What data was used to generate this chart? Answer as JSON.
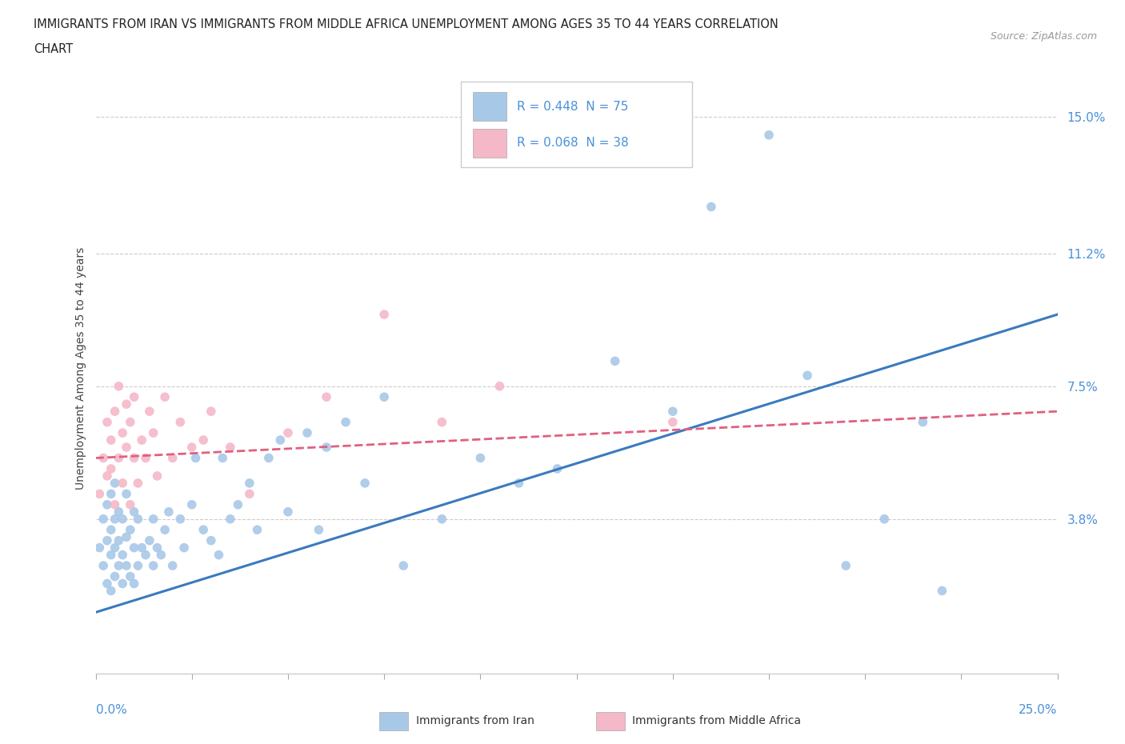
{
  "title_line1": "IMMIGRANTS FROM IRAN VS IMMIGRANTS FROM MIDDLE AFRICA UNEMPLOYMENT AMONG AGES 35 TO 44 YEARS CORRELATION",
  "title_line2": "CHART",
  "source_text": "Source: ZipAtlas.com",
  "ylabel": "Unemployment Among Ages 35 to 44 years",
  "ytick_values": [
    0.038,
    0.075,
    0.112,
    0.15
  ],
  "ytick_labels": [
    "3.8%",
    "7.5%",
    "11.2%",
    "15.0%"
  ],
  "xmin": 0.0,
  "xmax": 0.25,
  "ymin": -0.005,
  "ymax": 0.165,
  "iran_color": "#a8c8e8",
  "iran_line_color": "#3a7abf",
  "africa_color": "#f4b8c8",
  "africa_line_color": "#e06080",
  "iran_R": 0.448,
  "iran_N": 75,
  "africa_R": 0.068,
  "africa_N": 38,
  "iran_trend_x0": 0.0,
  "iran_trend_y0": 0.012,
  "iran_trend_x1": 0.25,
  "iran_trend_y1": 0.095,
  "africa_trend_x0": 0.0,
  "africa_trend_y0": 0.055,
  "africa_trend_x1": 0.25,
  "africa_trend_y1": 0.068,
  "iran_scatter_x": [
    0.001,
    0.002,
    0.002,
    0.003,
    0.003,
    0.003,
    0.004,
    0.004,
    0.004,
    0.004,
    0.005,
    0.005,
    0.005,
    0.005,
    0.006,
    0.006,
    0.006,
    0.007,
    0.007,
    0.007,
    0.008,
    0.008,
    0.008,
    0.009,
    0.009,
    0.01,
    0.01,
    0.01,
    0.011,
    0.011,
    0.012,
    0.013,
    0.014,
    0.015,
    0.015,
    0.016,
    0.017,
    0.018,
    0.019,
    0.02,
    0.022,
    0.023,
    0.025,
    0.026,
    0.028,
    0.03,
    0.032,
    0.033,
    0.035,
    0.037,
    0.04,
    0.042,
    0.045,
    0.048,
    0.05,
    0.055,
    0.058,
    0.06,
    0.065,
    0.07,
    0.075,
    0.08,
    0.09,
    0.1,
    0.11,
    0.12,
    0.135,
    0.15,
    0.16,
    0.175,
    0.185,
    0.195,
    0.205,
    0.215,
    0.22
  ],
  "iran_scatter_y": [
    0.03,
    0.025,
    0.038,
    0.02,
    0.032,
    0.042,
    0.018,
    0.028,
    0.035,
    0.045,
    0.022,
    0.03,
    0.038,
    0.048,
    0.025,
    0.032,
    0.04,
    0.02,
    0.028,
    0.038,
    0.025,
    0.033,
    0.045,
    0.022,
    0.035,
    0.02,
    0.03,
    0.04,
    0.025,
    0.038,
    0.03,
    0.028,
    0.032,
    0.025,
    0.038,
    0.03,
    0.028,
    0.035,
    0.04,
    0.025,
    0.038,
    0.03,
    0.042,
    0.055,
    0.035,
    0.032,
    0.028,
    0.055,
    0.038,
    0.042,
    0.048,
    0.035,
    0.055,
    0.06,
    0.04,
    0.062,
    0.035,
    0.058,
    0.065,
    0.048,
    0.072,
    0.025,
    0.038,
    0.055,
    0.048,
    0.052,
    0.082,
    0.068,
    0.125,
    0.145,
    0.078,
    0.025,
    0.038,
    0.065,
    0.018
  ],
  "africa_scatter_x": [
    0.001,
    0.002,
    0.003,
    0.003,
    0.004,
    0.004,
    0.005,
    0.005,
    0.006,
    0.006,
    0.007,
    0.007,
    0.008,
    0.008,
    0.009,
    0.009,
    0.01,
    0.01,
    0.011,
    0.012,
    0.013,
    0.014,
    0.015,
    0.016,
    0.018,
    0.02,
    0.022,
    0.025,
    0.028,
    0.03,
    0.035,
    0.04,
    0.05,
    0.06,
    0.075,
    0.09,
    0.105,
    0.15
  ],
  "africa_scatter_y": [
    0.045,
    0.055,
    0.05,
    0.065,
    0.052,
    0.06,
    0.042,
    0.068,
    0.055,
    0.075,
    0.048,
    0.062,
    0.058,
    0.07,
    0.042,
    0.065,
    0.055,
    0.072,
    0.048,
    0.06,
    0.055,
    0.068,
    0.062,
    0.05,
    0.072,
    0.055,
    0.065,
    0.058,
    0.06,
    0.068,
    0.058,
    0.045,
    0.062,
    0.072,
    0.095,
    0.065,
    0.075,
    0.065
  ]
}
